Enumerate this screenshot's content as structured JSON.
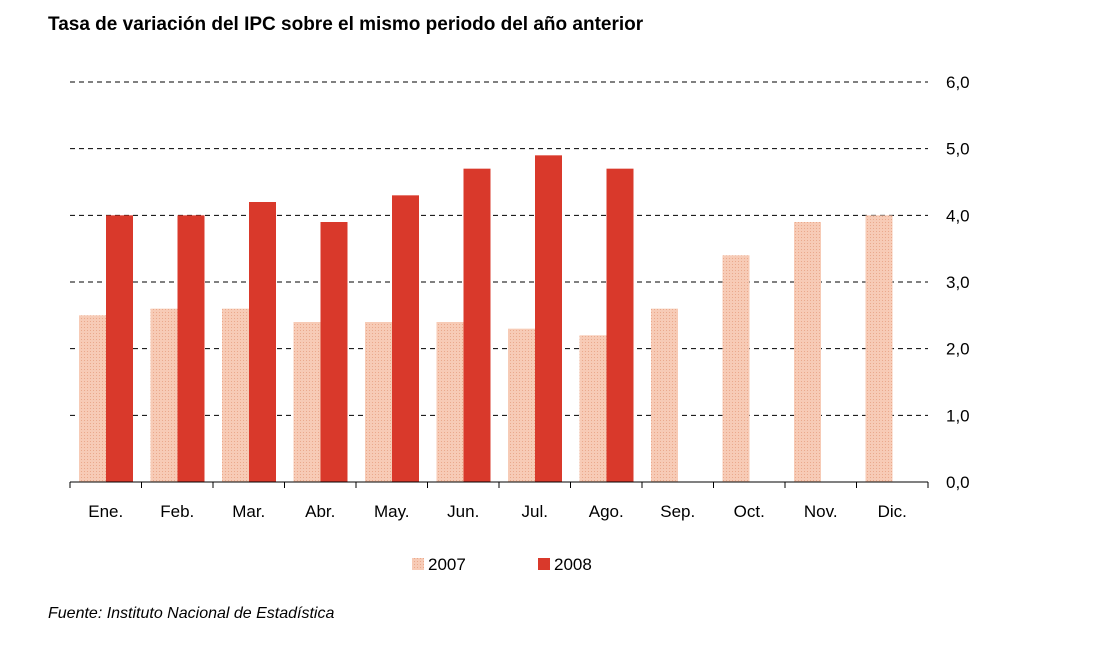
{
  "chart_data": {
    "type": "bar",
    "title": "Tasa de variación del IPC sobre el mismo periodo del año anterior",
    "xlabel": "",
    "ylabel": "",
    "categories": [
      "Ene.",
      "Feb.",
      "Mar.",
      "Abr.",
      "May.",
      "Jun.",
      "Jul.",
      "Ago.",
      "Sep.",
      "Oct.",
      "Nov.",
      "Dic."
    ],
    "series": [
      {
        "name": "2007",
        "color": "#f5c0a8",
        "values": [
          2.5,
          2.6,
          2.6,
          2.4,
          2.4,
          2.4,
          2.3,
          2.2,
          2.6,
          3.4,
          3.9,
          4.0
        ]
      },
      {
        "name": "2008",
        "color": "#d9392b",
        "values": [
          4.0,
          4.0,
          4.2,
          3.9,
          4.3,
          4.7,
          4.9,
          4.7,
          null,
          null,
          null,
          null
        ]
      }
    ],
    "ylim": [
      0,
      6
    ],
    "yticks": [
      "0,0",
      "1,0",
      "2,0",
      "3,0",
      "4,0",
      "5,0",
      "6,0"
    ],
    "y_axis_side": "right",
    "grid": "dashed horizontal",
    "legend": "bottom-center"
  },
  "source_note": "Fuente: Instituto Nacional de Estadística"
}
